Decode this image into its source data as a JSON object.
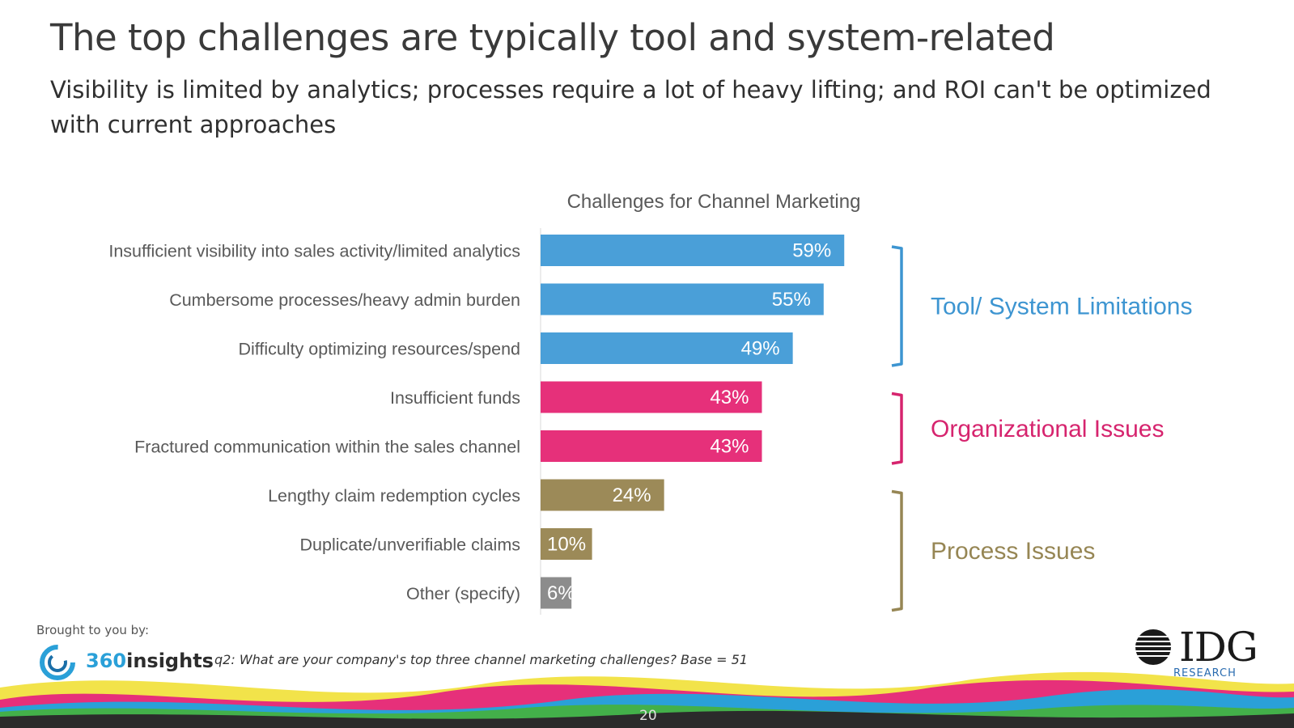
{
  "slide": {
    "title": "The top challenges are typically tool and system-related",
    "subtitle": "Visibility is limited by analytics; processes require a lot of heavy lifting; and ROI can't be optimized with current approaches",
    "page_number": "20"
  },
  "footer": {
    "brought_by": "Brought to you by:",
    "logo_360_num": "360",
    "logo_360_word": "insights",
    "question_note": "q2: What are your company's top three channel marketing challenges? Base = 51",
    "idg_logo": "IDG",
    "idg_sub": "RESEARCH"
  },
  "chart_data": {
    "type": "bar",
    "orientation": "horizontal",
    "title": "Challenges for Channel Marketing",
    "categories": [
      "Insufficient visibility into sales activity/limited analytics",
      "Cumbersome processes/heavy admin burden",
      "Difficulty optimizing resources/spend",
      "Insufficient funds",
      "Fractured communication within the sales channel",
      "Lengthy claim redemption cycles",
      "Duplicate/unverifiable claims",
      "Other (specify)"
    ],
    "values": [
      59,
      55,
      49,
      43,
      43,
      24,
      10,
      6
    ],
    "value_labels": [
      "59%",
      "55%",
      "49%",
      "43%",
      "43%",
      "24%",
      "10%",
      "6%"
    ],
    "unit": "%",
    "xlim": [
      0,
      100
    ],
    "bar_colors": [
      "#4a9fd8",
      "#4a9fd8",
      "#4a9fd8",
      "#e6307a",
      "#e6307a",
      "#9c8a58",
      "#9c8a58",
      "#8c8c8c"
    ],
    "groups": [
      {
        "label": "Tool/ System Limitations",
        "color": "#3d95d1",
        "first": 0,
        "last": 2
      },
      {
        "label": "Organizational Issues",
        "color": "#d6246e",
        "first": 3,
        "last": 4
      },
      {
        "label": "Process Issues",
        "color": "#968654",
        "first": 5,
        "last": 7
      }
    ]
  }
}
